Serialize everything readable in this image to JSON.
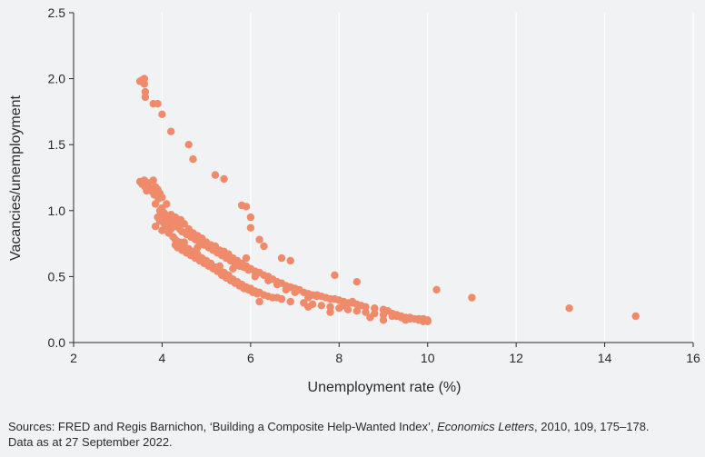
{
  "chart_data": {
    "type": "scatter",
    "title": "",
    "xlabel": "Unemployment rate (%)",
    "ylabel": "Vacancies/unemployment",
    "xlim": [
      2,
      16
    ],
    "ylim": [
      0,
      2.5
    ],
    "xticks": [
      2,
      4,
      6,
      8,
      10,
      12,
      14,
      16
    ],
    "yticks": [
      0.0,
      0.5,
      1.0,
      1.5,
      2.0,
      2.5
    ],
    "xtick_labels": [
      "2",
      "4",
      "6",
      "8",
      "10",
      "12",
      "14",
      "16"
    ],
    "ytick_labels": [
      "0.0",
      "0.5",
      "1.0",
      "1.5",
      "2.0",
      "2.5"
    ],
    "grid": "vertical",
    "point_color": "#ef8a6a",
    "points": [
      [
        3.5,
        1.98
      ],
      [
        3.55,
        1.99
      ],
      [
        3.6,
        2.0
      ],
      [
        3.6,
        1.96
      ],
      [
        3.62,
        1.9
      ],
      [
        3.62,
        1.86
      ],
      [
        3.8,
        1.81
      ],
      [
        3.9,
        1.81
      ],
      [
        4.0,
        1.73
      ],
      [
        4.2,
        1.6
      ],
      [
        4.6,
        1.5
      ],
      [
        4.7,
        1.39
      ],
      [
        5.2,
        1.27
      ],
      [
        5.4,
        1.24
      ],
      [
        5.8,
        1.04
      ],
      [
        5.9,
        1.03
      ],
      [
        6.0,
        0.95
      ],
      [
        6.0,
        0.87
      ],
      [
        6.2,
        0.78
      ],
      [
        6.3,
        0.73
      ],
      [
        6.7,
        0.64
      ],
      [
        6.9,
        0.62
      ],
      [
        3.5,
        1.22
      ],
      [
        3.55,
        1.2
      ],
      [
        3.6,
        1.23
      ],
      [
        3.62,
        1.18
      ],
      [
        3.65,
        1.15
      ],
      [
        3.7,
        1.21
      ],
      [
        3.72,
        1.17
      ],
      [
        3.75,
        1.15
      ],
      [
        3.8,
        1.23
      ],
      [
        3.82,
        1.12
      ],
      [
        3.85,
        1.18
      ],
      [
        3.85,
        1.05
      ],
      [
        3.9,
        1.16
      ],
      [
        3.92,
        1.09
      ],
      [
        3.95,
        1.13
      ],
      [
        3.95,
        1.0
      ],
      [
        4.0,
        1.1
      ],
      [
        4.0,
        1.02
      ],
      [
        4.02,
        0.95
      ],
      [
        4.05,
        0.98
      ],
      [
        4.08,
        0.93
      ],
      [
        4.1,
        1.05
      ],
      [
        4.1,
        0.9
      ],
      [
        4.12,
        0.95
      ],
      [
        4.15,
        0.92
      ],
      [
        4.2,
        0.97
      ],
      [
        4.22,
        0.9
      ],
      [
        4.25,
        0.93
      ],
      [
        4.3,
        0.88
      ],
      [
        4.3,
        0.95
      ],
      [
        4.35,
        0.9
      ],
      [
        4.4,
        0.86
      ],
      [
        4.42,
        0.93
      ],
      [
        4.45,
        0.84
      ],
      [
        4.5,
        0.9
      ],
      [
        4.55,
        0.82
      ],
      [
        4.6,
        0.85
      ],
      [
        4.65,
        0.8
      ],
      [
        4.7,
        0.83
      ],
      [
        4.75,
        0.78
      ],
      [
        4.8,
        0.81
      ],
      [
        4.85,
        0.76
      ],
      [
        4.9,
        0.79
      ],
      [
        4.95,
        0.74
      ],
      [
        5.0,
        0.76
      ],
      [
        5.05,
        0.72
      ],
      [
        5.1,
        0.74
      ],
      [
        5.15,
        0.7
      ],
      [
        5.2,
        0.73
      ],
      [
        5.25,
        0.68
      ],
      [
        5.3,
        0.7
      ],
      [
        5.35,
        0.66
      ],
      [
        5.4,
        0.69
      ],
      [
        5.45,
        0.64
      ],
      [
        5.5,
        0.67
      ],
      [
        5.55,
        0.62
      ],
      [
        5.6,
        0.64
      ],
      [
        5.65,
        0.6
      ],
      [
        5.7,
        0.62
      ],
      [
        5.75,
        0.58
      ],
      [
        5.8,
        0.6
      ],
      [
        5.85,
        0.57
      ],
      [
        5.9,
        0.58
      ],
      [
        5.95,
        0.55
      ],
      [
        6.0,
        0.56
      ],
      [
        6.1,
        0.54
      ],
      [
        6.2,
        0.53
      ],
      [
        6.3,
        0.51
      ],
      [
        6.4,
        0.5
      ],
      [
        6.5,
        0.48
      ],
      [
        6.6,
        0.46
      ],
      [
        6.7,
        0.45
      ],
      [
        6.8,
        0.43
      ],
      [
        6.9,
        0.42
      ],
      [
        7.0,
        0.41
      ],
      [
        7.1,
        0.4
      ],
      [
        7.2,
        0.38
      ],
      [
        7.3,
        0.37
      ],
      [
        7.4,
        0.36
      ],
      [
        7.5,
        0.35
      ],
      [
        7.6,
        0.35
      ],
      [
        7.7,
        0.34
      ],
      [
        7.8,
        0.33
      ],
      [
        7.9,
        0.33
      ],
      [
        8.0,
        0.32
      ],
      [
        8.1,
        0.31
      ],
      [
        8.2,
        0.3
      ],
      [
        8.3,
        0.3
      ],
      [
        8.4,
        0.29
      ],
      [
        8.5,
        0.28
      ],
      [
        8.6,
        0.27
      ],
      [
        8.8,
        0.26
      ],
      [
        9.0,
        0.25
      ],
      [
        9.1,
        0.24
      ],
      [
        9.2,
        0.22
      ],
      [
        9.3,
        0.21
      ],
      [
        9.4,
        0.2
      ],
      [
        9.5,
        0.19
      ],
      [
        9.6,
        0.19
      ],
      [
        9.7,
        0.18
      ],
      [
        9.8,
        0.18
      ],
      [
        9.9,
        0.18
      ],
      [
        10.0,
        0.17
      ],
      [
        3.85,
        0.88
      ],
      [
        3.9,
        0.95
      ],
      [
        3.95,
        0.92
      ],
      [
        4.0,
        0.85
      ],
      [
        4.05,
        0.9
      ],
      [
        4.1,
        0.88
      ],
      [
        4.15,
        0.83
      ],
      [
        4.2,
        0.86
      ],
      [
        4.25,
        0.8
      ],
      [
        4.3,
        0.74
      ],
      [
        4.3,
        0.78
      ],
      [
        4.35,
        0.72
      ],
      [
        4.4,
        0.76
      ],
      [
        4.45,
        0.7
      ],
      [
        4.5,
        0.73
      ],
      [
        4.55,
        0.68
      ],
      [
        4.6,
        0.71
      ],
      [
        4.65,
        0.66
      ],
      [
        4.7,
        0.69
      ],
      [
        4.75,
        0.64
      ],
      [
        4.8,
        0.67
      ],
      [
        4.85,
        0.62
      ],
      [
        4.9,
        0.64
      ],
      [
        4.95,
        0.6
      ],
      [
        5.0,
        0.62
      ],
      [
        5.05,
        0.58
      ],
      [
        5.1,
        0.6
      ],
      [
        5.15,
        0.56
      ],
      [
        5.2,
        0.57
      ],
      [
        5.25,
        0.54
      ],
      [
        5.3,
        0.55
      ],
      [
        5.35,
        0.51
      ],
      [
        5.4,
        0.53
      ],
      [
        5.45,
        0.49
      ],
      [
        5.5,
        0.51
      ],
      [
        5.55,
        0.47
      ],
      [
        5.6,
        0.48
      ],
      [
        5.65,
        0.45
      ],
      [
        5.7,
        0.46
      ],
      [
        5.75,
        0.43
      ],
      [
        5.8,
        0.44
      ],
      [
        5.85,
        0.41
      ],
      [
        5.9,
        0.42
      ],
      [
        5.95,
        0.4
      ],
      [
        6.0,
        0.41
      ],
      [
        6.05,
        0.38
      ],
      [
        6.1,
        0.39
      ],
      [
        6.15,
        0.37
      ],
      [
        6.2,
        0.38
      ],
      [
        6.3,
        0.36
      ],
      [
        6.4,
        0.35
      ],
      [
        6.5,
        0.34
      ],
      [
        6.7,
        0.33
      ],
      [
        6.9,
        0.31
      ],
      [
        7.2,
        0.3
      ],
      [
        7.4,
        0.29
      ],
      [
        7.6,
        0.28
      ],
      [
        7.8,
        0.27
      ],
      [
        8.0,
        0.26
      ],
      [
        8.2,
        0.25
      ],
      [
        8.4,
        0.24
      ],
      [
        8.6,
        0.23
      ],
      [
        8.8,
        0.22
      ],
      [
        9.0,
        0.21
      ],
      [
        9.2,
        0.2
      ],
      [
        9.4,
        0.19
      ],
      [
        9.6,
        0.18
      ],
      [
        9.8,
        0.17
      ],
      [
        9.9,
        0.16
      ],
      [
        10.0,
        0.16
      ],
      [
        4.5,
        0.76
      ],
      [
        4.8,
        0.72
      ],
      [
        5.0,
        0.75
      ],
      [
        5.2,
        0.7
      ],
      [
        5.5,
        0.66
      ],
      [
        5.8,
        0.58
      ],
      [
        6.1,
        0.5
      ],
      [
        6.4,
        0.47
      ],
      [
        6.6,
        0.44
      ],
      [
        6.8,
        0.4
      ],
      [
        7.0,
        0.38
      ],
      [
        7.3,
        0.34
      ],
      [
        7.5,
        0.36
      ],
      [
        7.9,
        0.51
      ],
      [
        8.4,
        0.46
      ],
      [
        8.1,
        0.28
      ],
      [
        8.7,
        0.19
      ],
      [
        9.0,
        0.17
      ],
      [
        9.3,
        0.2
      ],
      [
        9.5,
        0.17
      ],
      [
        7.3,
        0.27
      ],
      [
        7.8,
        0.23
      ],
      [
        8.3,
        0.31
      ],
      [
        6.6,
        0.34
      ],
      [
        6.2,
        0.31
      ],
      [
        5.6,
        0.56
      ],
      [
        5.9,
        0.64
      ],
      [
        5.3,
        0.58
      ],
      [
        4.6,
        0.86
      ],
      [
        4.4,
        0.93
      ],
      [
        10.2,
        0.4
      ],
      [
        11.0,
        0.34
      ],
      [
        13.2,
        0.26
      ],
      [
        14.7,
        0.2
      ]
    ]
  },
  "source": {
    "prefix": "Sources: FRED and Regis Barnichon, ‘Building a Composite Help-Wanted Index’, ",
    "journal": "Economics Letters",
    "suffix": ", 2010, 109, 175–178.",
    "line2": "Data as at 27 September 2022."
  }
}
